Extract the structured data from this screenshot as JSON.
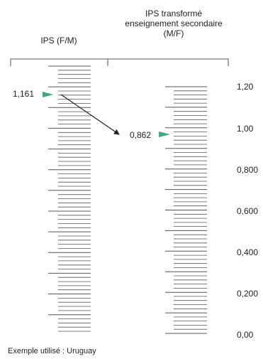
{
  "left_scale": {
    "title": "IPS (F/M)",
    "value": "1,161"
  },
  "right_scale": {
    "title_lines": [
      "IPS transformé",
      "enseignement secondaire",
      "(M/F)"
    ],
    "value": "0,862"
  },
  "axis_labels": [
    "1,20",
    "1,00",
    "0,800",
    "0,600",
    "0,400",
    "0,200",
    "0,00"
  ],
  "footnote": "Exemple utilisé : Uruguay",
  "colors": {
    "marker": "#3aa882",
    "line": "#222222",
    "tick": "#555555"
  }
}
